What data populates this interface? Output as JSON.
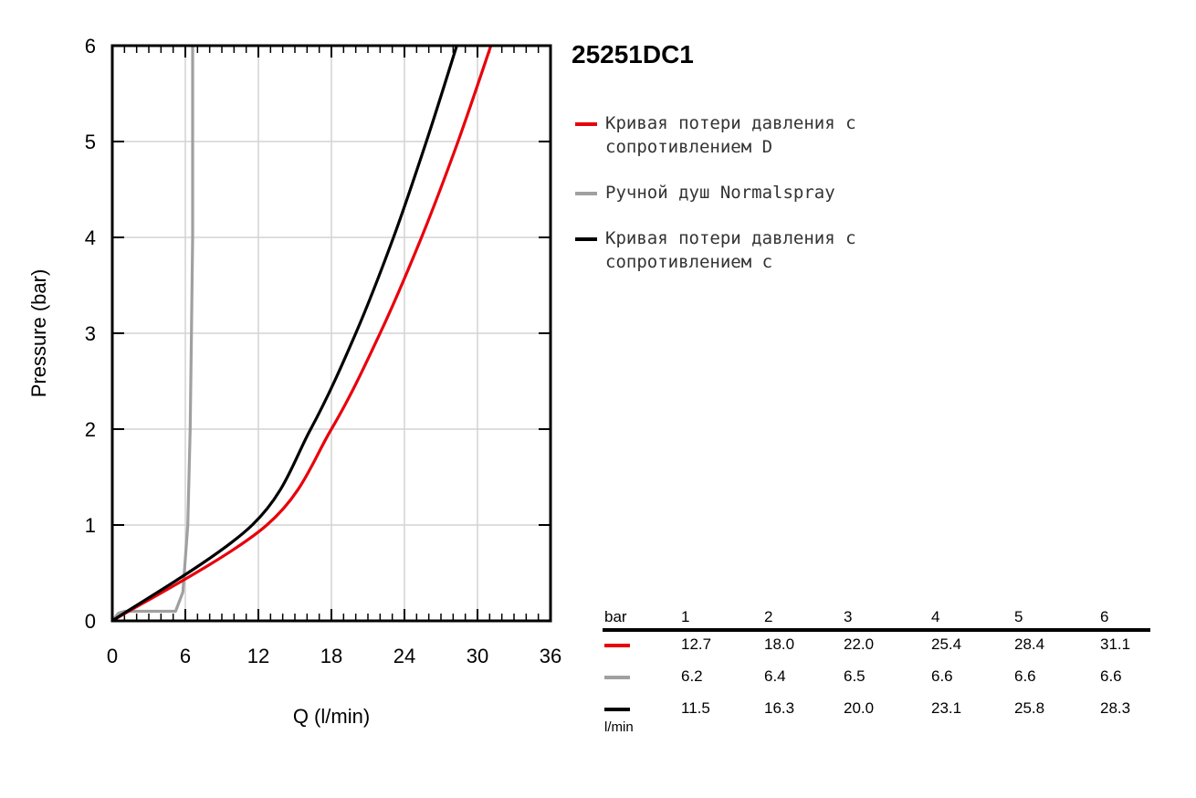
{
  "chart_data": {
    "type": "line",
    "title": "25251DC1",
    "xlabel": "Q (l/min)",
    "ylabel": "Pressure (bar)",
    "xlim": [
      0,
      36
    ],
    "ylim": [
      0,
      6
    ],
    "x_ticks": [
      "0",
      "6",
      "12",
      "18",
      "24",
      "30",
      "36"
    ],
    "y_ticks": [
      "0",
      "1",
      "2",
      "3",
      "4",
      "5",
      "6"
    ],
    "grid": true,
    "legend_position": "right",
    "series": [
      {
        "name": "Кривая потери давления с сопротивлением D",
        "color": "#e8000b",
        "x": [
          0,
          12.7,
          18.0,
          22.0,
          25.4,
          28.4,
          31.1
        ],
        "y": [
          0,
          1,
          2,
          3,
          4,
          5,
          6
        ]
      },
      {
        "name": "Ручной душ Normalspray",
        "color": "#a0a0a0",
        "x": [
          0,
          0.5,
          1.0,
          5.2,
          5.8,
          6.2,
          6.4,
          6.5,
          6.6,
          6.6,
          6.6
        ],
        "y": [
          0,
          0.08,
          0.1,
          0.1,
          0.3,
          1,
          2,
          3,
          4,
          5,
          6
        ]
      },
      {
        "name": "Кривая потери давления с сопротивлением с",
        "color": "#000000",
        "x": [
          0,
          11.5,
          16.3,
          20.0,
          23.1,
          25.8,
          28.3
        ],
        "y": [
          0,
          1,
          2,
          3,
          4,
          5,
          6
        ]
      }
    ],
    "table": {
      "header_label": "bar",
      "unit_label": "l/min",
      "columns": [
        "1",
        "2",
        "3",
        "4",
        "5",
        "6"
      ],
      "rows": [
        {
          "color": "#e8000b",
          "values": [
            "12.7",
            "18.0",
            "22.0",
            "25.4",
            "28.4",
            "31.1"
          ]
        },
        {
          "color": "#a0a0a0",
          "values": [
            "6.2",
            "6.4",
            "6.5",
            "6.6",
            "6.6",
            "6.6"
          ]
        },
        {
          "color": "#000000",
          "values": [
            "11.5",
            "16.3",
            "20.0",
            "23.1",
            "25.8",
            "28.3"
          ]
        }
      ]
    }
  }
}
